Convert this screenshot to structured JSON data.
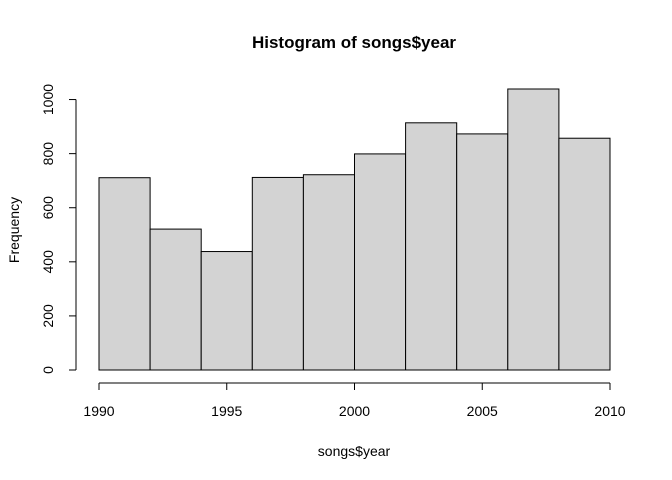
{
  "chart_data": {
    "type": "histogram",
    "title": "Histogram of songs$year",
    "xlabel": "songs$year",
    "ylabel": "Frequency",
    "bins": [
      {
        "start": 1990,
        "end": 1992,
        "count": 711
      },
      {
        "start": 1992,
        "end": 1994,
        "count": 521
      },
      {
        "start": 1994,
        "end": 1996,
        "count": 438
      },
      {
        "start": 1996,
        "end": 1998,
        "count": 712
      },
      {
        "start": 1998,
        "end": 2000,
        "count": 722
      },
      {
        "start": 2000,
        "end": 2002,
        "count": 799
      },
      {
        "start": 2002,
        "end": 2004,
        "count": 914
      },
      {
        "start": 2004,
        "end": 2006,
        "count": 873
      },
      {
        "start": 2006,
        "end": 2008,
        "count": 1039
      },
      {
        "start": 2008,
        "end": 2010,
        "count": 857
      }
    ],
    "x_ticks": [
      1990,
      1995,
      2000,
      2005,
      2010
    ],
    "y_ticks": [
      0,
      200,
      400,
      600,
      800,
      1000
    ],
    "xlim": [
      1990,
      2010
    ],
    "ylim": [
      0,
      1039
    ],
    "bar_fill": "#d3d3d3",
    "bar_stroke": "#000000",
    "grid": false,
    "legend": "none"
  }
}
